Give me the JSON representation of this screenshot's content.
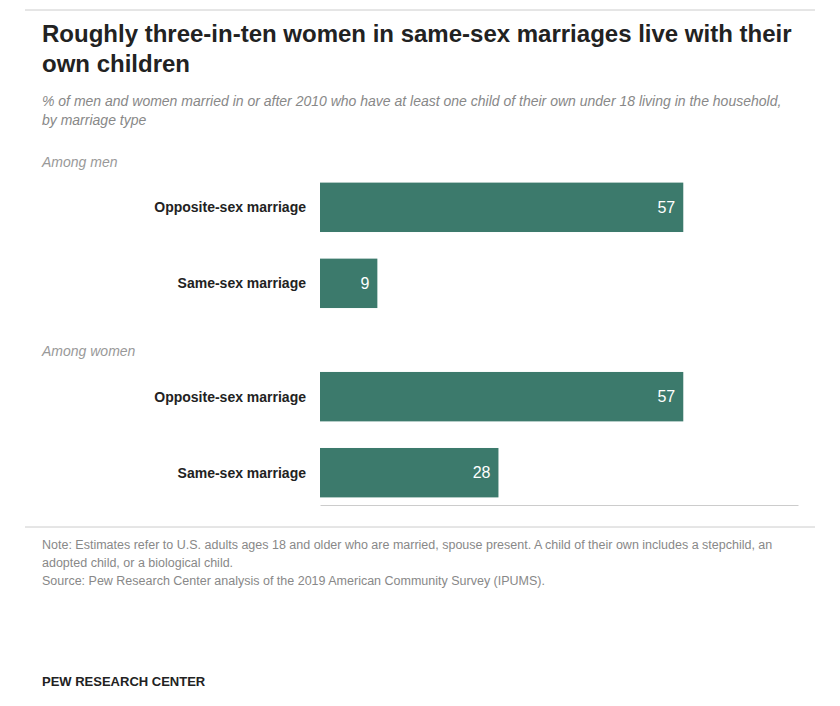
{
  "chart_data": {
    "type": "bar",
    "orientation": "horizontal",
    "title": "Roughly three-in-ten women in same-sex marriages live with their own children",
    "subtitle": "% of men and women married in or after 2010 who have at least one child of their own under 18 living in the household, by marriage type",
    "categories": [
      "Opposite-sex marriage",
      "Same-sex marriage"
    ],
    "series": [
      {
        "name": "Among men",
        "values": [
          57,
          9
        ]
      },
      {
        "name": "Among women",
        "values": [
          57,
          28
        ]
      }
    ],
    "color": "#3c7a6c",
    "xlim": [
      0,
      75
    ],
    "data_labels": true,
    "tick_labels": false,
    "grid": false,
    "note": "Note: Estimates refer to U.S. adults ages 18 and older who are married, spouse present. A child of their own includes a stepchild, an adopted child, or a biological child.",
    "source": "Source: Pew Research Center analysis of the 2019 American Community Survey (IPUMS).",
    "footer": "PEW RESEARCH CENTER"
  }
}
